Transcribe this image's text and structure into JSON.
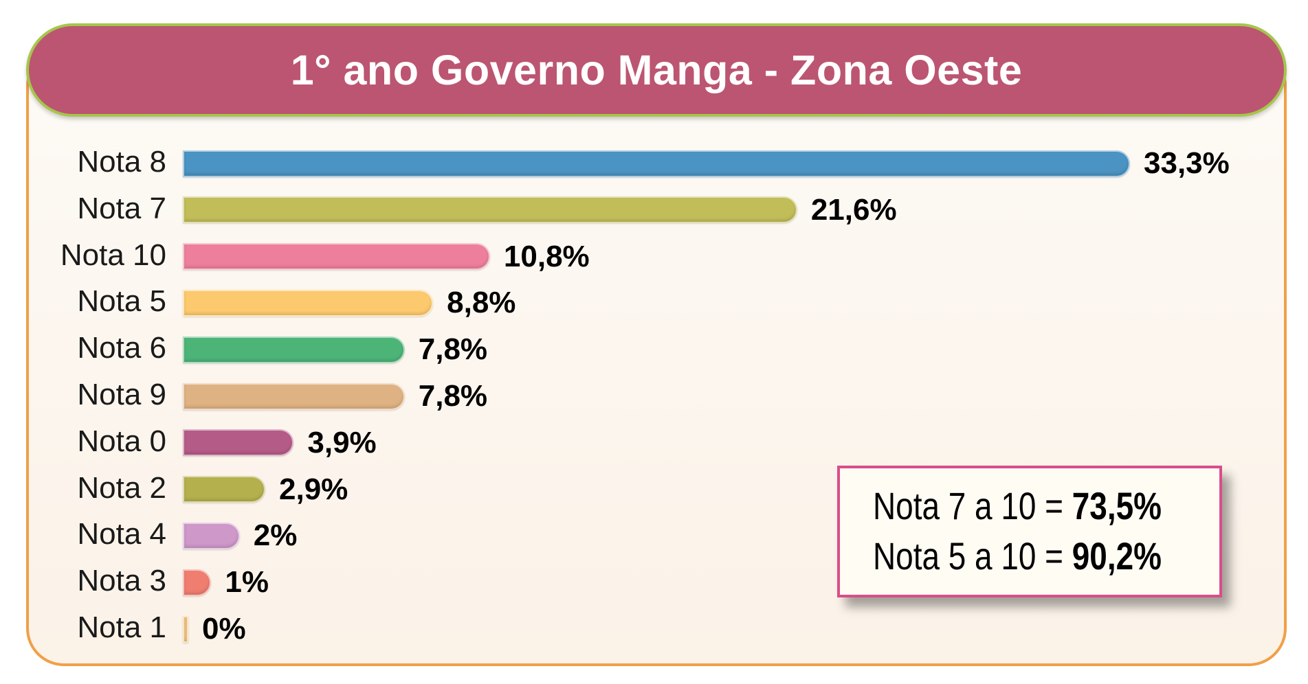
{
  "chart_data": {
    "type": "bar",
    "orientation": "horizontal",
    "title": "1° ano Governo Manga - Zona Oeste",
    "categories": [
      "Nota 8",
      "Nota 7",
      "Nota 10",
      "Nota 5",
      "Nota 6",
      "Nota 9",
      "Nota 0",
      "Nota 2",
      "Nota 4",
      "Nota 3",
      "Nota 1"
    ],
    "values": [
      33.3,
      21.6,
      10.8,
      8.8,
      7.8,
      7.8,
      3.9,
      2.9,
      2,
      1,
      0
    ],
    "value_labels": [
      "33,3%",
      "21,6%",
      "10,8%",
      "8,8%",
      "7,8%",
      "7,8%",
      "3,9%",
      "2,9%",
      "2%",
      "1%",
      "0%"
    ],
    "colors": [
      "#4a93c3",
      "#c1bd58",
      "#ee7f9c",
      "#fdc96e",
      "#4db478",
      "#dfb283",
      "#b55b87",
      "#b5b04e",
      "#ce98c9",
      "#ef7d70",
      "#f3c37e"
    ],
    "xlim": [
      0,
      33.3
    ],
    "grid": false,
    "legend": "none"
  },
  "summary": {
    "line1_prefix": "Nota 7 a 10 = ",
    "line1_value": "73,5%",
    "line2_prefix": "Nota 5 a 10 = ",
    "line2_value": "90,2%"
  }
}
